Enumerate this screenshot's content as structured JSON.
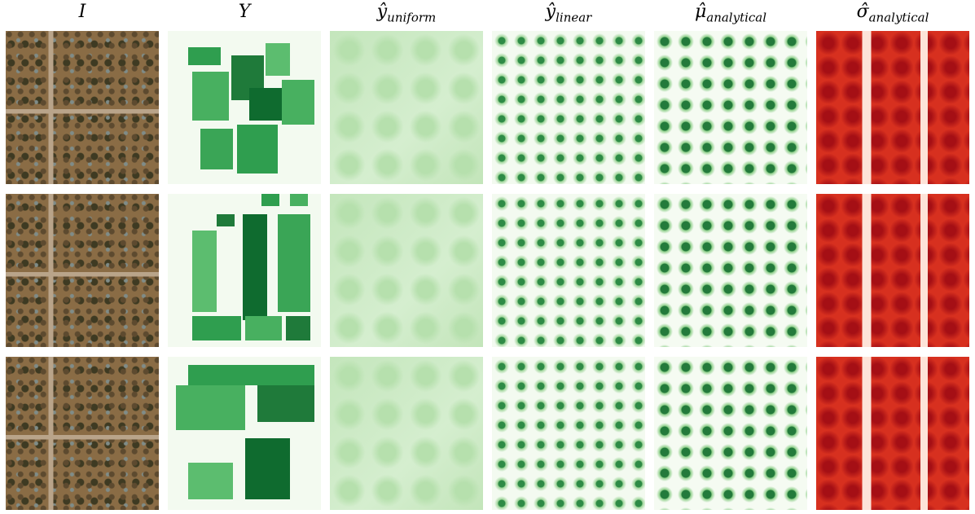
{
  "columns": [
    {
      "symbol": "I"
    },
    {
      "symbol": "Y"
    },
    {
      "symbol": "ŷ",
      "subscript": "uniform"
    },
    {
      "symbol": "ŷ",
      "subscript": "linear"
    },
    {
      "symbol": "μ̂",
      "subscript": "analytical"
    },
    {
      "symbol": "σ̂",
      "subscript": "analytical"
    }
  ]
}
